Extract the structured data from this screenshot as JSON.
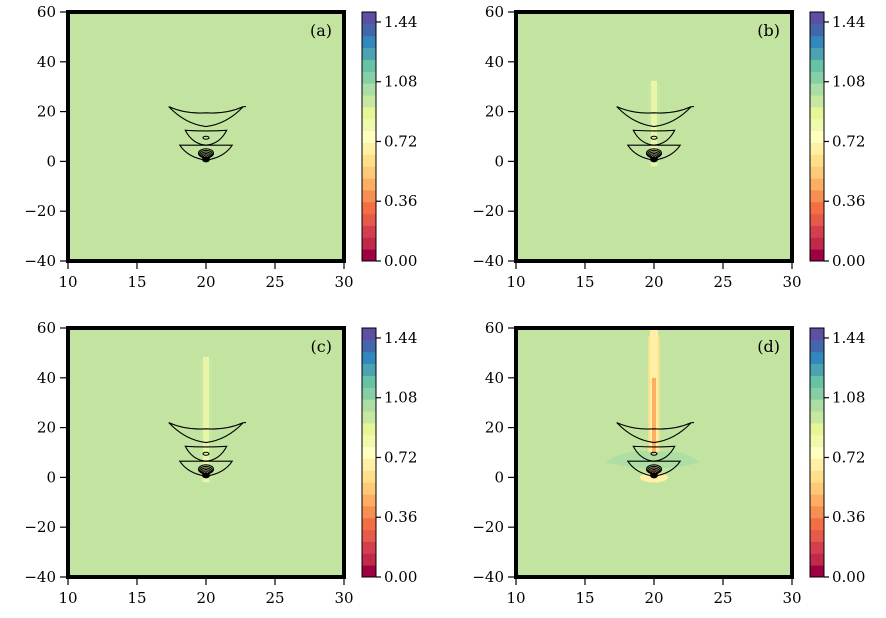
{
  "figure": {
    "colormap": [
      "#9e0142",
      "#c1284a",
      "#d53e4f",
      "#e65a4a",
      "#f46d43",
      "#f88f52",
      "#fdae61",
      "#fec978",
      "#fee08b",
      "#fff0a6",
      "#ffffbf",
      "#f1f9ab",
      "#e6f598",
      "#c6e8a0",
      "#abdda4",
      "#86cfa5",
      "#66c2a5",
      "#4ba3b2",
      "#3288bd",
      "#4466ad",
      "#5e4fa2"
    ],
    "background_value_color": "#c2e4a0"
  },
  "chart_data": [
    {
      "type": "heatmap",
      "panel_label": "(a)",
      "x_ticks": [
        "10",
        "15",
        "20",
        "25",
        "30"
      ],
      "y_ticks": [
        "60",
        "40",
        "20",
        "0",
        "−20",
        "−40"
      ],
      "xlim": [
        10,
        30
      ],
      "ylim": [
        -40,
        60
      ],
      "colorbar": {
        "ticks": [
          "1.44",
          "1.08",
          "0.72",
          "0.36",
          "0.00"
        ],
        "range": [
          0.0,
          1.5
        ]
      },
      "background_value": 1.0,
      "plume": {
        "top_y": 0,
        "min_value": 1.0
      },
      "contours_present": true
    },
    {
      "type": "heatmap",
      "panel_label": "(b)",
      "x_ticks": [
        "10",
        "15",
        "20",
        "25",
        "30"
      ],
      "y_ticks": [
        "60",
        "40",
        "20",
        "0",
        "−20",
        "−40"
      ],
      "xlim": [
        10,
        30
      ],
      "ylim": [
        -40,
        60
      ],
      "colorbar": {
        "ticks": [
          "1.44",
          "1.08",
          "0.72",
          "0.36",
          "0.00"
        ],
        "range": [
          0.0,
          1.5
        ]
      },
      "background_value": 1.0,
      "plume": {
        "top_y": 34,
        "min_value": 0.9
      },
      "contours_present": true
    },
    {
      "type": "heatmap",
      "panel_label": "(c)",
      "x_ticks": [
        "10",
        "15",
        "20",
        "25",
        "30"
      ],
      "y_ticks": [
        "60",
        "40",
        "20",
        "0",
        "−20",
        "−40"
      ],
      "xlim": [
        10,
        30
      ],
      "ylim": [
        -40,
        60
      ],
      "colorbar": {
        "ticks": [
          "1.44",
          "1.08",
          "0.72",
          "0.36",
          "0.00"
        ],
        "range": [
          0.0,
          1.5
        ]
      },
      "background_value": 1.0,
      "plume": {
        "top_y": 50,
        "min_value": 0.88
      },
      "contours_present": true
    },
    {
      "type": "heatmap",
      "panel_label": "(d)",
      "x_ticks": [
        "10",
        "15",
        "20",
        "25",
        "30"
      ],
      "y_ticks": [
        "60",
        "40",
        "20",
        "0",
        "−20",
        "−40"
      ],
      "xlim": [
        10,
        30
      ],
      "ylim": [
        -40,
        60
      ],
      "colorbar": {
        "ticks": [
          "1.44",
          "1.08",
          "0.72",
          "0.36",
          "0.00"
        ],
        "range": [
          0.0,
          1.5
        ]
      },
      "background_value": 1.0,
      "plume": {
        "top_y": 60,
        "min_value": 0.55
      },
      "contours_present": true
    }
  ]
}
